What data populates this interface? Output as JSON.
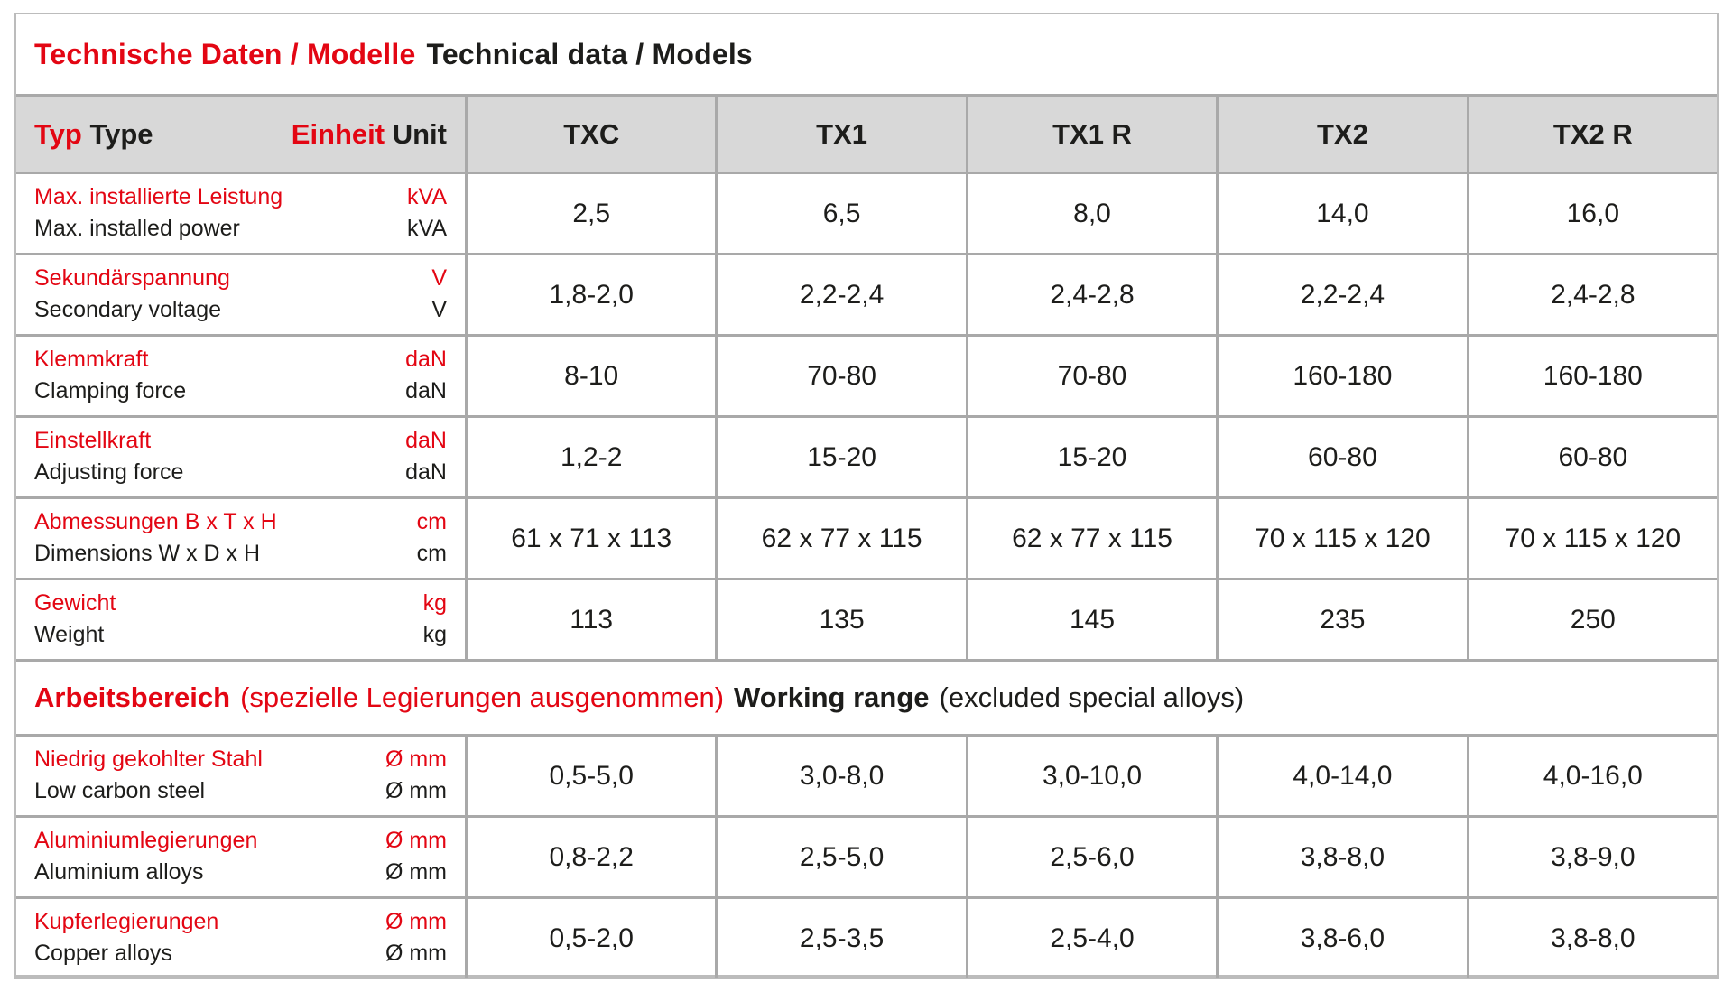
{
  "colors": {
    "accent_red": "#e30613",
    "text_black": "#1d1d1b",
    "header_background": "#d8d8d8",
    "grid_border": "#a9a9a9"
  },
  "title": {
    "de": "Technische Daten / Modelle",
    "en": "Technical data / Models"
  },
  "header": {
    "type_de": "Typ",
    "type_en": "Type",
    "unit_de": "Einheit",
    "unit_en": "Unit",
    "models": [
      "TXC",
      "TX1",
      "TX1 R",
      "TX2",
      "TX2 R"
    ]
  },
  "rows": [
    {
      "label_de": "Max. installierte Leistung",
      "unit_de": "kVA",
      "label_en": "Max. installed power",
      "unit_en": "kVA",
      "values": [
        "2,5",
        "6,5",
        "8,0",
        "14,0",
        "16,0"
      ]
    },
    {
      "label_de": "Sekundärspannung",
      "unit_de": "V",
      "label_en": "Secondary voltage",
      "unit_en": "V",
      "values": [
        "1,8-2,0",
        "2,2-2,4",
        "2,4-2,8",
        "2,2-2,4",
        "2,4-2,8"
      ]
    },
    {
      "label_de": "Klemmkraft",
      "unit_de": "daN",
      "label_en": "Clamping force",
      "unit_en": "daN",
      "values": [
        "8-10",
        "70-80",
        "70-80",
        "160-180",
        "160-180"
      ]
    },
    {
      "label_de": "Einstellkraft",
      "unit_de": "daN",
      "label_en": "Adjusting force",
      "unit_en": "daN",
      "values": [
        "1,2-2",
        "15-20",
        "15-20",
        "60-80",
        "60-80"
      ]
    },
    {
      "label_de": "Abmessungen B x T x H",
      "unit_de": "cm",
      "label_en": "Dimensions W x D x H",
      "unit_en": "cm",
      "values": [
        "61 x 71 x 113",
        "62 x 77 x 115",
        "62 x 77 x 115",
        "70 x 115 x 120",
        "70 x 115 x 120"
      ]
    },
    {
      "label_de": "Gewicht",
      "unit_de": "kg",
      "label_en": "Weight",
      "unit_en": "kg",
      "values": [
        "113",
        "135",
        "145",
        "235",
        "250"
      ]
    }
  ],
  "section": {
    "de_bold": "Arbeitsbereich",
    "de_rest": "(spezielle Legierungen ausgenommen)",
    "en_bold": "Working range",
    "en_rest": "(excluded special alloys)"
  },
  "rows2": [
    {
      "label_de": "Niedrig gekohlter Stahl",
      "unit_de": "Ø mm",
      "label_en": "Low carbon steel",
      "unit_en": "Ø mm",
      "values": [
        "0,5-5,0",
        "3,0-8,0",
        "3,0-10,0",
        "4,0-14,0",
        "4,0-16,0"
      ]
    },
    {
      "label_de": "Aluminiumlegierungen",
      "unit_de": "Ø mm",
      "label_en": "Aluminium alloys",
      "unit_en": "Ø mm",
      "values": [
        "0,8-2,2",
        "2,5-5,0",
        "2,5-6,0",
        "3,8-8,0",
        "3,8-9,0"
      ]
    },
    {
      "label_de": "Kupferlegierungen",
      "unit_de": "Ø mm",
      "label_en": "Copper alloys",
      "unit_en": "Ø mm",
      "values": [
        "0,5-2,0",
        "2,5-3,5",
        "2,5-4,0",
        "3,8-6,0",
        "3,8-8,0"
      ]
    }
  ]
}
